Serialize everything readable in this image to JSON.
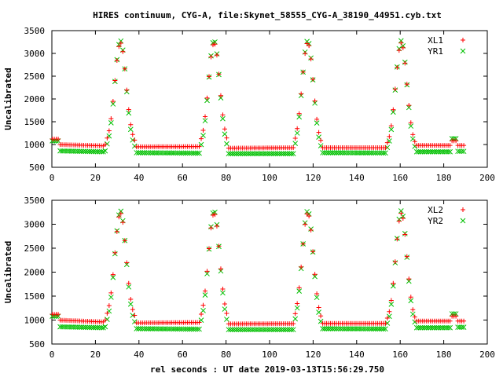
{
  "title": "HIRES continuum, CYG-A, file:Skynet_58555_CYG-A_38190_44951.cyb.txt",
  "xlabel": "rel seconds : UT date 2019-03-13T15:56:29.750",
  "colors": {
    "red": "#ff0000",
    "green": "#00c000"
  },
  "chart_data": [
    {
      "type": "scatter",
      "ylabel": "Uncalibrated",
      "xlim": [
        0,
        200
      ],
      "ylim": [
        500,
        3500
      ],
      "x_ticks": [
        0,
        20,
        40,
        60,
        80,
        100,
        120,
        140,
        160,
        180,
        200
      ],
      "y_ticks": [
        500,
        1000,
        1500,
        2000,
        2500,
        3000,
        3500
      ],
      "legend_position": "top-right",
      "peaks": [
        31.5,
        74.5,
        117.5,
        160.5
      ],
      "series": [
        {
          "name": "XL1",
          "marker": "plus",
          "color": "#ff0000",
          "peak_value": 3230,
          "x_range": [
            0.2,
            189.2
          ],
          "segments": [
            {
              "x": [
                0.2,
                3.0
              ],
              "value": 1120
            },
            {
              "x": [
                3.0,
                24.0
              ],
              "value": 1000,
              "end_value": 970
            },
            {
              "x": [
                38.0,
                68.0
              ],
              "value": 950,
              "end_value": 955
            },
            {
              "x": [
                81.0,
                111.0
              ],
              "value": 920,
              "end_value": 930
            },
            {
              "x": [
                124.0,
                154.0
              ],
              "value": 930
            },
            {
              "x": [
                167.0,
                183.0
              ],
              "value": 980
            },
            {
              "x": [
                183.0,
                186.5
              ],
              "value": 1080
            },
            {
              "x": [
                186.5,
                189.2
              ],
              "value": 980
            }
          ]
        },
        {
          "name": "YR1",
          "marker": "cross",
          "color": "#00c000",
          "peak_value": 3280,
          "x_range": [
            0.2,
            189.2
          ],
          "segments": [
            {
              "x": [
                0.2,
                3.0
              ],
              "value": 1080
            },
            {
              "x": [
                3.0,
                24.0
              ],
              "value": 860,
              "end_value": 840
            },
            {
              "x": [
                38.0,
                68.0
              ],
              "value": 820,
              "end_value": 810
            },
            {
              "x": [
                81.0,
                111.0
              ],
              "value": 800
            },
            {
              "x": [
                124.0,
                154.0
              ],
              "value": 820,
              "end_value": 815
            },
            {
              "x": [
                167.0,
                183.0
              ],
              "value": 840
            },
            {
              "x": [
                183.0,
                186.5
              ],
              "value": 1130
            },
            {
              "x": [
                186.5,
                189.2
              ],
              "value": 850
            }
          ]
        }
      ]
    },
    {
      "type": "scatter",
      "ylabel": "Uncalibrated",
      "xlim": [
        0,
        200
      ],
      "ylim": [
        500,
        3500
      ],
      "x_ticks": [
        0,
        20,
        40,
        60,
        80,
        100,
        120,
        140,
        160,
        180,
        200
      ],
      "y_ticks": [
        500,
        1000,
        1500,
        2000,
        2500,
        3000,
        3500
      ],
      "legend_position": "top-right",
      "peaks": [
        31.5,
        74.5,
        117.5,
        160.5
      ],
      "series": [
        {
          "name": "XL2",
          "marker": "plus",
          "color": "#ff0000",
          "peak_value": 3230,
          "x_range": [
            0.2,
            189.2
          ],
          "segments": [
            {
              "x": [
                0.2,
                3.0
              ],
              "value": 1120
            },
            {
              "x": [
                3.0,
                24.0
              ],
              "value": 1000,
              "end_value": 960
            },
            {
              "x": [
                38.0,
                68.0
              ],
              "value": 940,
              "end_value": 950
            },
            {
              "x": [
                81.0,
                111.0
              ],
              "value": 920,
              "end_value": 925
            },
            {
              "x": [
                124.0,
                154.0
              ],
              "value": 930
            },
            {
              "x": [
                167.0,
                183.0
              ],
              "value": 980
            },
            {
              "x": [
                183.0,
                186.5
              ],
              "value": 1080
            },
            {
              "x": [
                186.5,
                189.2
              ],
              "value": 980
            }
          ]
        },
        {
          "name": "YR2",
          "marker": "cross",
          "color": "#00c000",
          "peak_value": 3280,
          "x_range": [
            0.2,
            189.2
          ],
          "segments": [
            {
              "x": [
                0.2,
                3.0
              ],
              "value": 1080
            },
            {
              "x": [
                3.0,
                24.0
              ],
              "value": 860,
              "end_value": 840
            },
            {
              "x": [
                38.0,
                68.0
              ],
              "value": 820,
              "end_value": 810
            },
            {
              "x": [
                81.0,
                111.0
              ],
              "value": 800
            },
            {
              "x": [
                124.0,
                154.0
              ],
              "value": 820,
              "end_value": 815
            },
            {
              "x": [
                167.0,
                183.0
              ],
              "value": 840
            },
            {
              "x": [
                183.0,
                186.5
              ],
              "value": 1130
            },
            {
              "x": [
                186.5,
                189.2
              ],
              "value": 850
            }
          ]
        }
      ]
    }
  ]
}
